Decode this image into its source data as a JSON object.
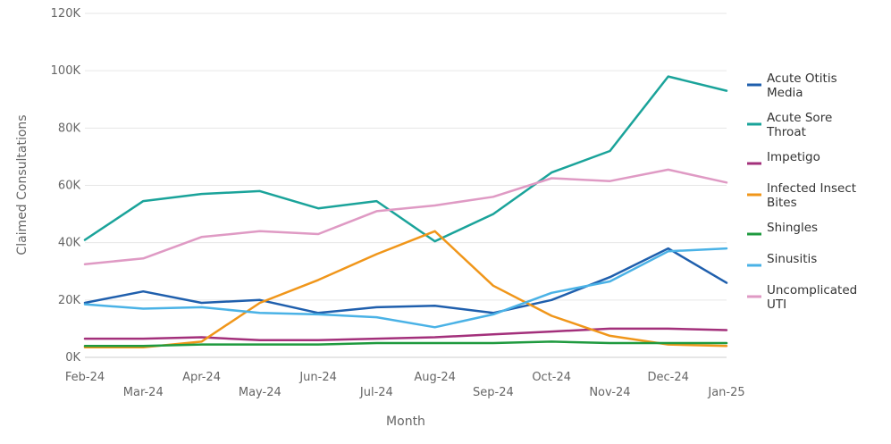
{
  "chart_data": {
    "type": "line",
    "xlabel": "Month",
    "ylabel": "Claimed Consultations",
    "ylim": [
      0,
      120000
    ],
    "yticks": [
      0,
      20000,
      40000,
      60000,
      80000,
      100000,
      120000
    ],
    "ytick_labels": [
      "0K",
      "20K",
      "40K",
      "60K",
      "80K",
      "100K",
      "120K"
    ],
    "categories": [
      "Feb-24",
      "Mar-24",
      "Apr-24",
      "May-24",
      "Jun-24",
      "Jul-24",
      "Aug-24",
      "Sep-24",
      "Oct-24",
      "Nov-24",
      "Dec-24",
      "Jan-25"
    ],
    "grid": true,
    "legend_position": "right",
    "series": [
      {
        "name": "Acute Otitis Media",
        "legend_lines": [
          "Acute Otitis",
          "Media"
        ],
        "color": "#1f5fad",
        "values": [
          19000,
          23000,
          19000,
          20000,
          15500,
          17500,
          18000,
          15500,
          20000,
          28000,
          38000,
          26000
        ]
      },
      {
        "name": "Acute Sore Throat",
        "legend_lines": [
          "Acute Sore",
          "Throat"
        ],
        "color": "#1aa39a",
        "values": [
          41000,
          54500,
          57000,
          58000,
          52000,
          54500,
          40500,
          50000,
          64500,
          72000,
          98000,
          93000
        ]
      },
      {
        "name": "Impetigo",
        "legend_lines": [
          "Impetigo"
        ],
        "color": "#a3307b",
        "values": [
          6500,
          6500,
          7000,
          6000,
          6000,
          6500,
          7000,
          8000,
          9000,
          10000,
          10000,
          9500
        ]
      },
      {
        "name": "Infected Insect Bites",
        "legend_lines": [
          "Infected Insect",
          "Bites"
        ],
        "color": "#f0961a",
        "values": [
          3500,
          3500,
          5500,
          19000,
          27000,
          36000,
          44000,
          25000,
          14500,
          7500,
          4500,
          4000
        ]
      },
      {
        "name": "Shingles",
        "legend_lines": [
          "Shingles"
        ],
        "color": "#1f9a3f",
        "values": [
          4000,
          4000,
          4500,
          4500,
          4500,
          5000,
          5000,
          5000,
          5500,
          5000,
          5000,
          5000
        ]
      },
      {
        "name": "Sinusitis",
        "legend_lines": [
          "Sinusitis"
        ],
        "color": "#4ab2e6",
        "values": [
          18500,
          17000,
          17500,
          15500,
          15000,
          14000,
          10500,
          15000,
          22500,
          26500,
          37000,
          38000
        ]
      },
      {
        "name": "Uncomplicated UTI",
        "legend_lines": [
          "Uncomplicated",
          "UTI"
        ],
        "color": "#df9ac4",
        "values": [
          32500,
          34500,
          42000,
          44000,
          43000,
          51000,
          53000,
          56000,
          62500,
          61500,
          65500,
          61000
        ]
      }
    ]
  }
}
